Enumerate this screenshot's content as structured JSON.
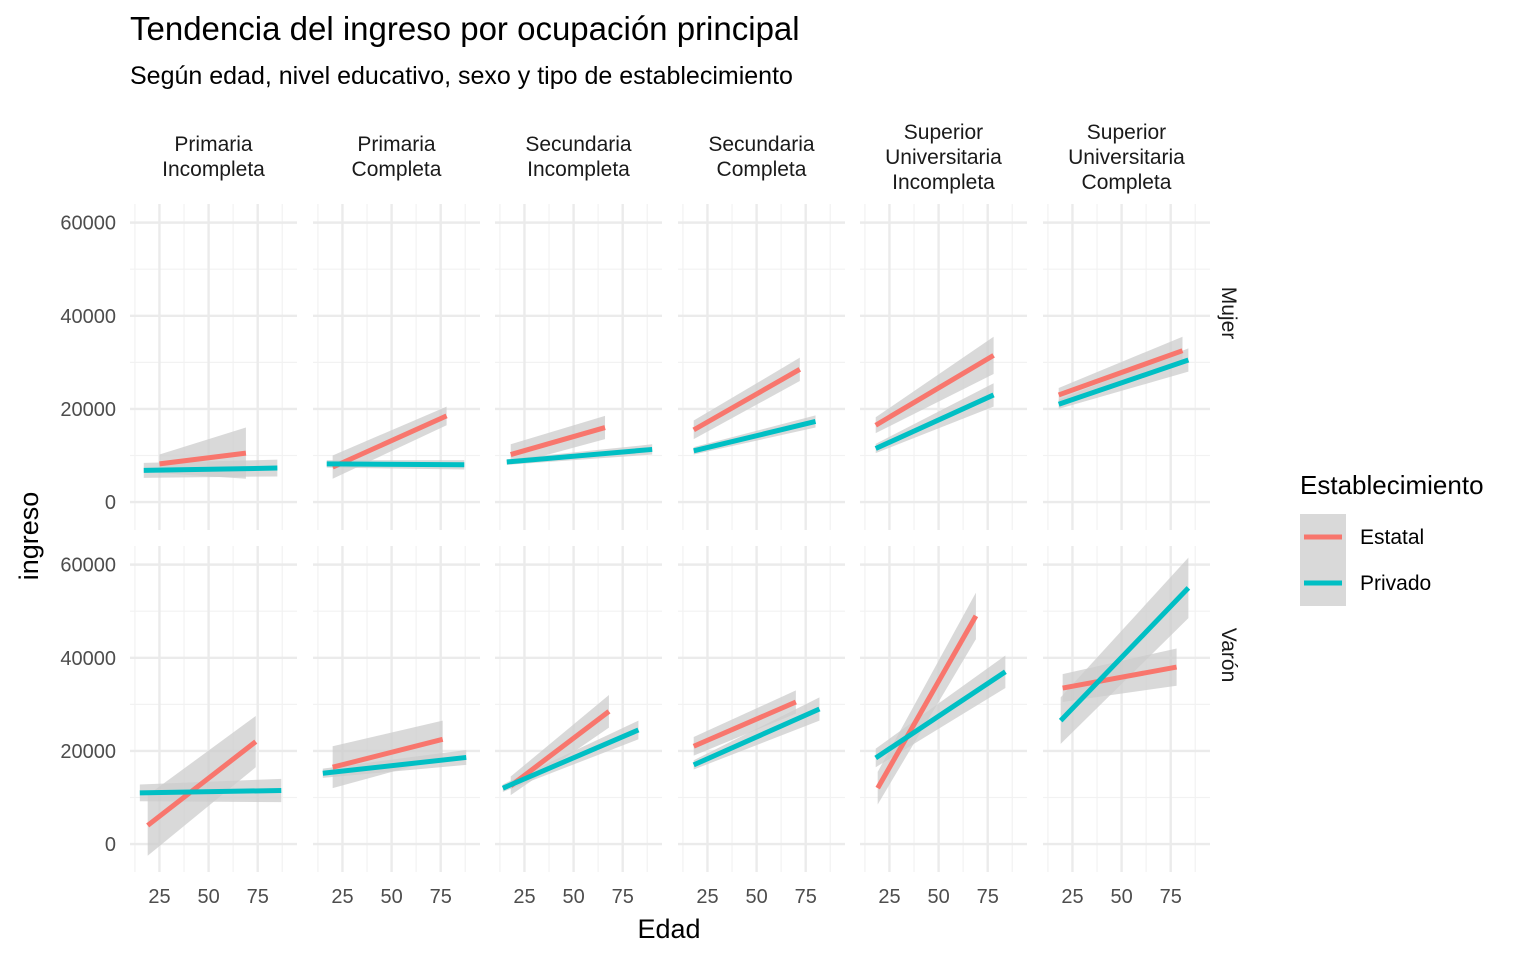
{
  "chart_data": {
    "type": "line",
    "title": "Tendencia del ingreso por ocupación principal",
    "subtitle": "Según edad, nivel educativo, sexo y tipo de establecimiento",
    "xlabel": "Edad",
    "ylabel": "ingreso",
    "xlim": [
      10,
      95
    ],
    "ylim": [
      -6000,
      64000
    ],
    "x_ticks": [
      25,
      50,
      75
    ],
    "y_ticks": [
      0,
      20000,
      40000,
      60000
    ],
    "grid": true,
    "legend": {
      "title": "Establecimiento",
      "position": "right",
      "entries": [
        {
          "name": "Estatal",
          "color": "#F8766D"
        },
        {
          "name": "Privado",
          "color": "#00BFC4"
        }
      ]
    },
    "columns": [
      {
        "label_lines": [
          "Primaria",
          "Incompleta"
        ]
      },
      {
        "label_lines": [
          "Primaria",
          "Completa"
        ]
      },
      {
        "label_lines": [
          "Secundaria",
          "Incompleta"
        ]
      },
      {
        "label_lines": [
          "Secundaria",
          "Completa"
        ]
      },
      {
        "label_lines": [
          "Superior",
          "Universitaria",
          "Incompleta"
        ]
      },
      {
        "label_lines": [
          "Superior",
          "Universitaria",
          "Completa"
        ]
      }
    ],
    "rows": [
      "Mujer",
      "Varón"
    ],
    "ribbon_color": "#cccccc",
    "panels": [
      {
        "row": 0,
        "col": 0,
        "series": [
          {
            "name": "Estatal",
            "x": [
              25,
              69
            ],
            "y": [
              8200,
              10500
            ],
            "ci": [
              [
                6200,
                10200
              ],
              [
                5000,
                16000
              ]
            ]
          },
          {
            "name": "Privado",
            "x": [
              17,
              85
            ],
            "y": [
              6800,
              7300
            ],
            "ci": [
              [
                5200,
                8400
              ],
              [
                5500,
                9100
              ]
            ]
          }
        ]
      },
      {
        "row": 0,
        "col": 1,
        "series": [
          {
            "name": "Estatal",
            "x": [
              20,
              78
            ],
            "y": [
              7500,
              18500
            ],
            "ci": [
              [
                5000,
                10000
              ],
              [
                16500,
                20500
              ]
            ]
          },
          {
            "name": "Privado",
            "x": [
              17,
              87
            ],
            "y": [
              8200,
              8000
            ],
            "ci": [
              [
                7400,
                9000
              ],
              [
                7000,
                9000
              ]
            ]
          }
        ]
      },
      {
        "row": 0,
        "col": 2,
        "series": [
          {
            "name": "Estatal",
            "x": [
              18,
              66
            ],
            "y": [
              10200,
              16000
            ],
            "ci": [
              [
                8000,
                12400
              ],
              [
                13500,
                18500
              ]
            ]
          },
          {
            "name": "Privado",
            "x": [
              16,
              90
            ],
            "y": [
              8600,
              11300
            ],
            "ci": [
              [
                8000,
                9200
              ],
              [
                10200,
                12400
              ]
            ]
          }
        ]
      },
      {
        "row": 0,
        "col": 3,
        "series": [
          {
            "name": "Estatal",
            "x": [
              18,
              72
            ],
            "y": [
              15500,
              28500
            ],
            "ci": [
              [
                13500,
                17500
              ],
              [
                26000,
                31000
              ]
            ]
          },
          {
            "name": "Privado",
            "x": [
              18,
              80
            ],
            "y": [
              11000,
              17300
            ],
            "ci": [
              [
                10200,
                11800
              ],
              [
                16000,
                18600
              ]
            ]
          }
        ]
      },
      {
        "row": 0,
        "col": 4,
        "series": [
          {
            "name": "Estatal",
            "x": [
              18,
              78
            ],
            "y": [
              16500,
              31500
            ],
            "ci": [
              [
                14800,
                18200
              ],
              [
                27500,
                35500
              ]
            ]
          },
          {
            "name": "Privado",
            "x": [
              18,
              78
            ],
            "y": [
              11500,
              23000
            ],
            "ci": [
              [
                10500,
                12500
              ],
              [
                20500,
                25500
              ]
            ]
          }
        ]
      },
      {
        "row": 0,
        "col": 5,
        "series": [
          {
            "name": "Estatal",
            "x": [
              18,
              81
            ],
            "y": [
              23000,
              32500
            ],
            "ci": [
              [
                21500,
                24500
              ],
              [
                29500,
                35500
              ]
            ]
          },
          {
            "name": "Privado",
            "x": [
              18,
              84
            ],
            "y": [
              21000,
              30500
            ],
            "ci": [
              [
                20000,
                22000
              ],
              [
                28000,
                33000
              ]
            ]
          }
        ]
      },
      {
        "row": 1,
        "col": 0,
        "series": [
          {
            "name": "Estatal",
            "x": [
              19,
              74
            ],
            "y": [
              4000,
              22000
            ],
            "ci": [
              [
                -2500,
                10500
              ],
              [
                16500,
                27500
              ]
            ]
          },
          {
            "name": "Privado",
            "x": [
              15,
              87
            ],
            "y": [
              11000,
              11500
            ],
            "ci": [
              [
                9200,
                12800
              ],
              [
                9000,
                14000
              ]
            ]
          }
        ]
      },
      {
        "row": 1,
        "col": 1,
        "series": [
          {
            "name": "Estatal",
            "x": [
              20,
              76
            ],
            "y": [
              16500,
              22500
            ],
            "ci": [
              [
                12000,
                21000
              ],
              [
                18500,
                26500
              ]
            ]
          },
          {
            "name": "Privado",
            "x": [
              15,
              88
            ],
            "y": [
              15200,
              18600
            ],
            "ci": [
              [
                14200,
                16200
              ],
              [
                17000,
                20200
              ]
            ]
          }
        ]
      },
      {
        "row": 1,
        "col": 2,
        "series": [
          {
            "name": "Estatal",
            "x": [
              18,
              68
            ],
            "y": [
              12500,
              28500
            ],
            "ci": [
              [
                10500,
                14500
              ],
              [
                25000,
                32000
              ]
            ]
          },
          {
            "name": "Privado",
            "x": [
              14,
              83
            ],
            "y": [
              12000,
              24500
            ],
            "ci": [
              [
                11200,
                12800
              ],
              [
                22500,
                26500
              ]
            ]
          }
        ]
      },
      {
        "row": 1,
        "col": 3,
        "series": [
          {
            "name": "Estatal",
            "x": [
              18,
              70
            ],
            "y": [
              21000,
              30500
            ],
            "ci": [
              [
                19000,
                23000
              ],
              [
                28000,
                33000
              ]
            ]
          },
          {
            "name": "Privado",
            "x": [
              18,
              82
            ],
            "y": [
              17000,
              29000
            ],
            "ci": [
              [
                16000,
                18000
              ],
              [
                26500,
                31500
              ]
            ]
          }
        ]
      },
      {
        "row": 1,
        "col": 4,
        "series": [
          {
            "name": "Estatal",
            "x": [
              19,
              69
            ],
            "y": [
              12000,
              49000
            ],
            "ci": [
              [
                8500,
                15500
              ],
              [
                44000,
                54000
              ]
            ]
          },
          {
            "name": "Privado",
            "x": [
              18,
              84
            ],
            "y": [
              18500,
              37000
            ],
            "ci": [
              [
                16500,
                20500
              ],
              [
                33500,
                40500
              ]
            ]
          }
        ]
      },
      {
        "row": 1,
        "col": 5,
        "series": [
          {
            "name": "Estatal",
            "x": [
              20,
              78
            ],
            "y": [
              33500,
              38000
            ],
            "ci": [
              [
                30500,
                36500
              ],
              [
                34000,
                42000
              ]
            ]
          },
          {
            "name": "Privado",
            "x": [
              19,
              84
            ],
            "y": [
              26500,
              55000
            ],
            "ci": [
              [
                21500,
                31500
              ],
              [
                48500,
                61500
              ]
            ]
          }
        ]
      }
    ]
  }
}
